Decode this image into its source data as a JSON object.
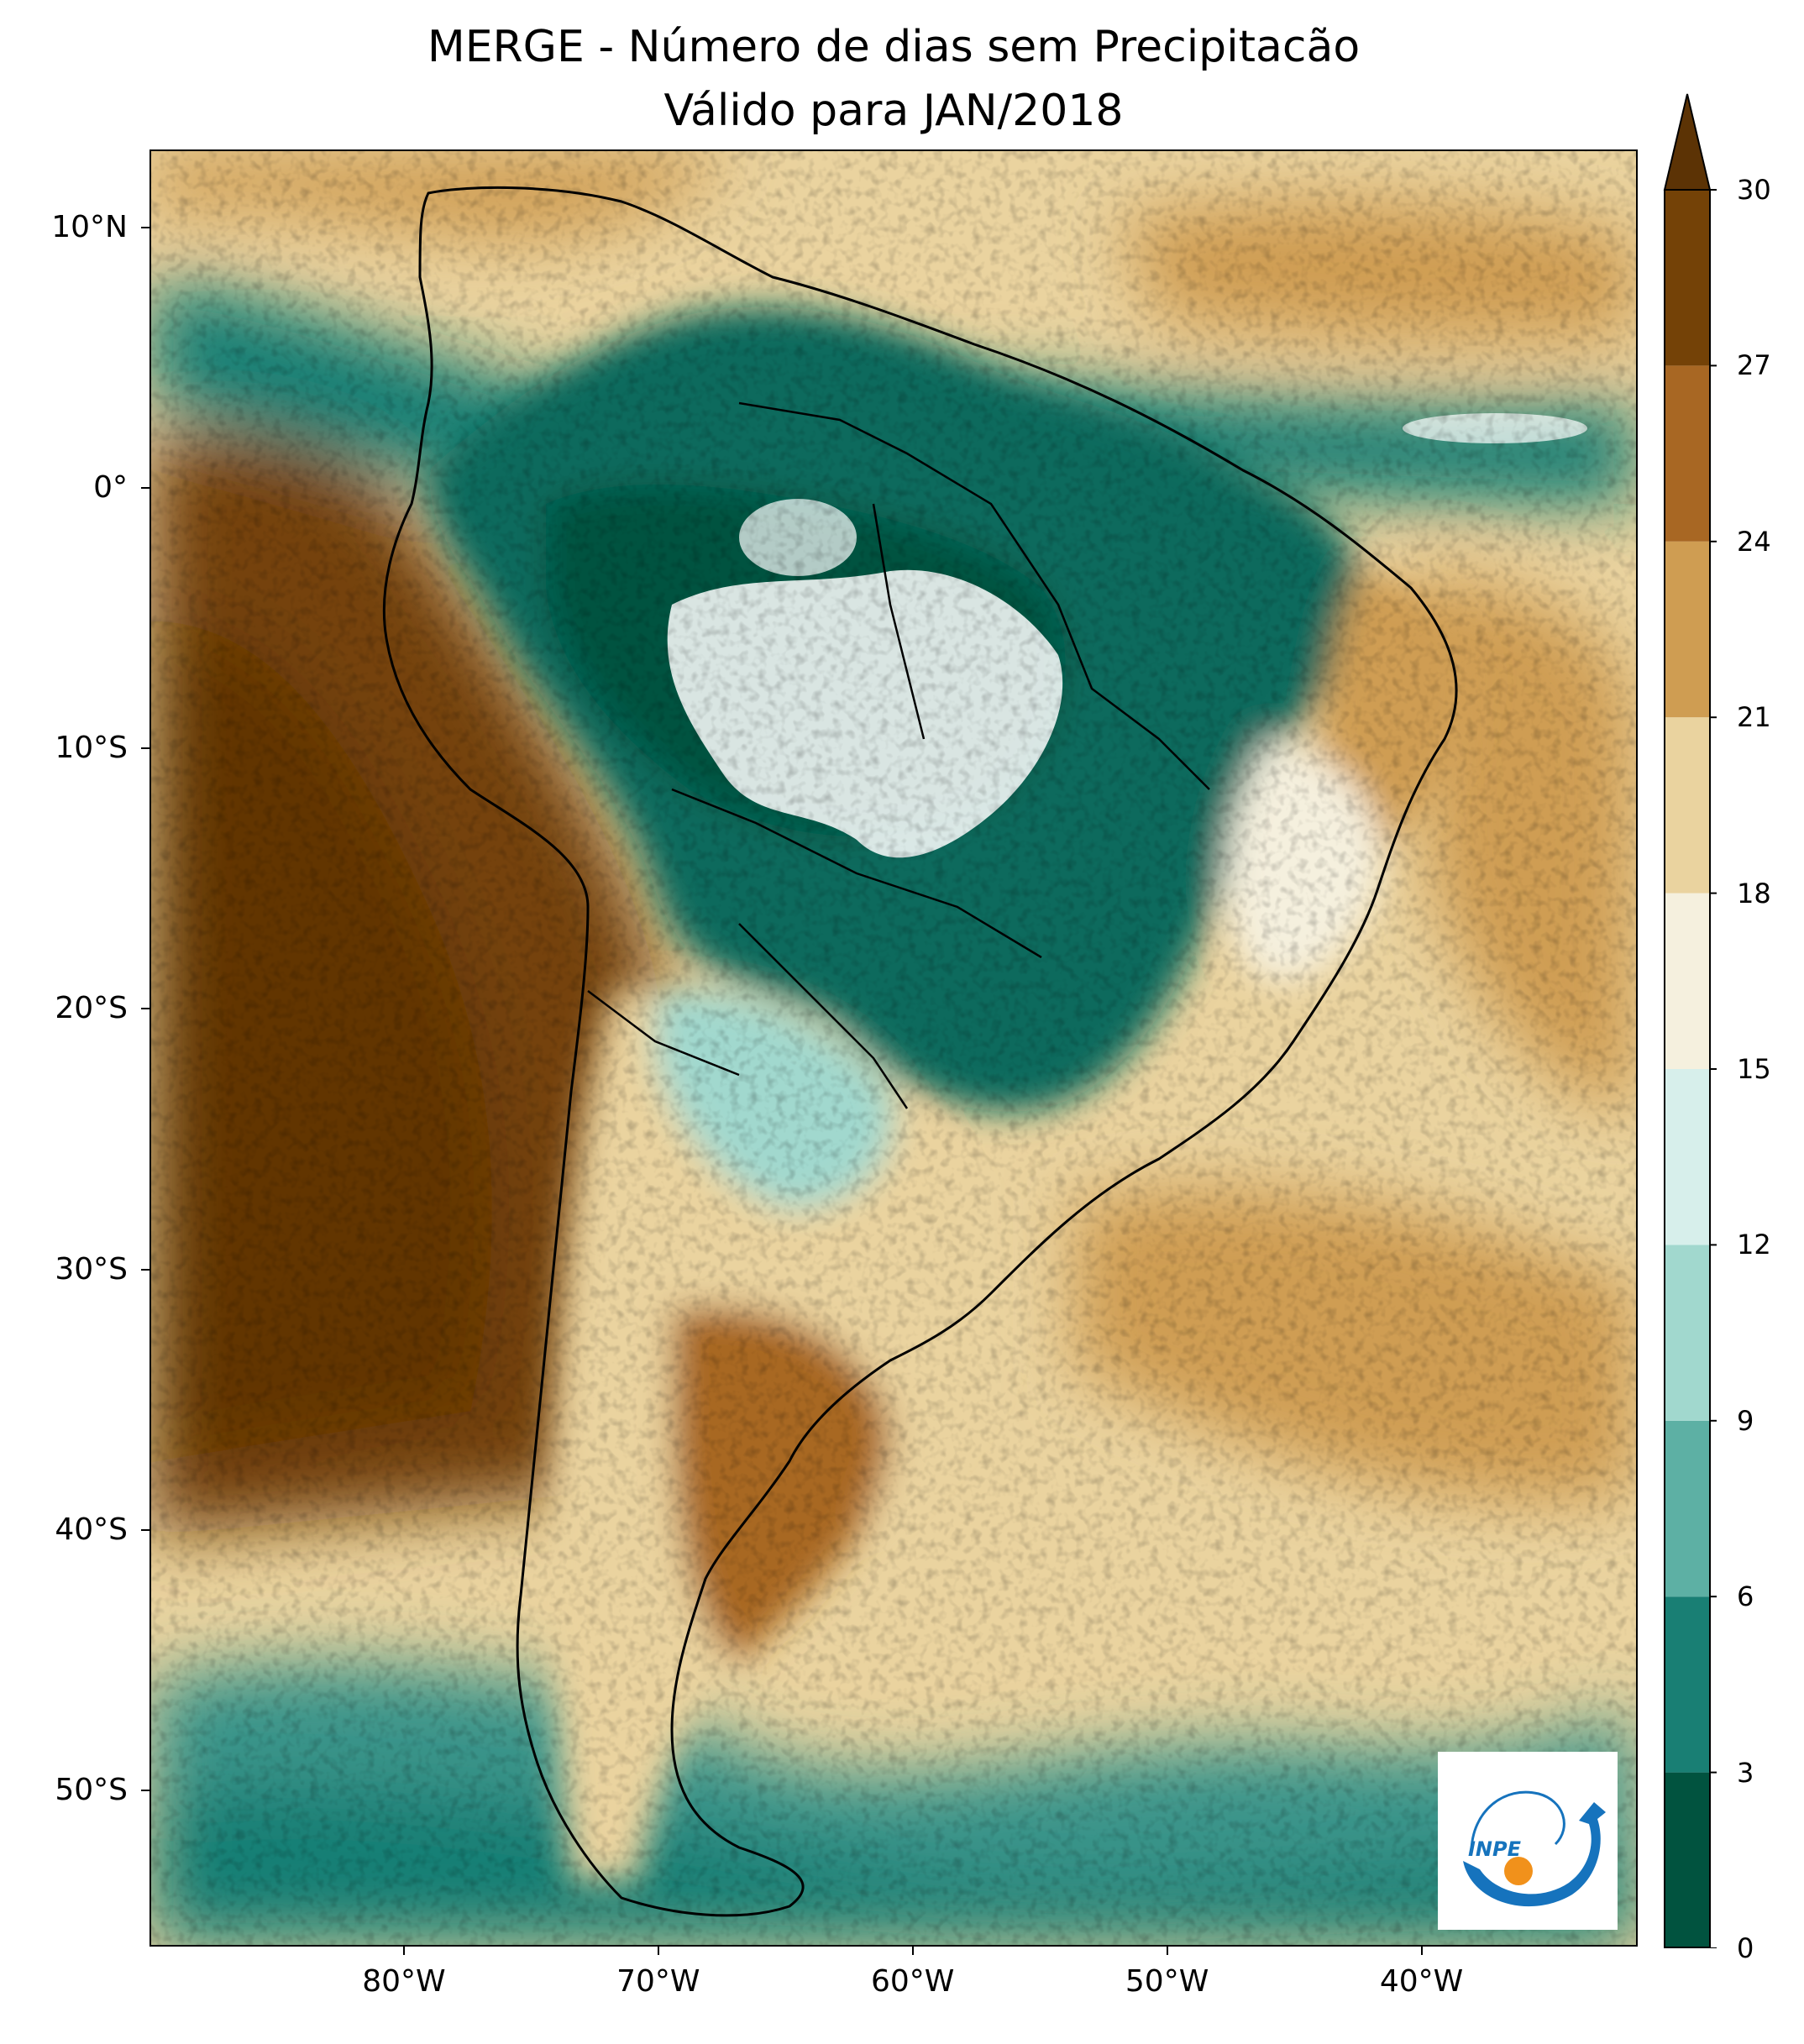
{
  "title": {
    "line1": "MERGE - Número de dias sem Precipitacão",
    "line2": "Válido para JAN/2018"
  },
  "map": {
    "projection": "PlateCarree",
    "lon_range": [
      -90.0,
      -31.5
    ],
    "lat_range": [
      -56.0,
      13.0
    ],
    "x_ticks": [
      {
        "lon": -80,
        "label": "80°W"
      },
      {
        "lon": -70,
        "label": "70°W"
      },
      {
        "lon": -60,
        "label": "60°W"
      },
      {
        "lon": -50,
        "label": "50°W"
      },
      {
        "lon": -40,
        "label": "40°W"
      }
    ],
    "y_ticks": [
      {
        "lat": 10,
        "label": "10°N"
      },
      {
        "lat": 0,
        "label": "0°"
      },
      {
        "lat": -10,
        "label": "10°S"
      },
      {
        "lat": -20,
        "label": "20°S"
      },
      {
        "lat": -30,
        "label": "30°S"
      },
      {
        "lat": -40,
        "label": "40°S"
      },
      {
        "lat": -50,
        "label": "50°S"
      }
    ],
    "variable": "number of days without precipitation",
    "colormap": "BrBG_r",
    "colorbar": {
      "levels": [
        0,
        3,
        6,
        9,
        12,
        15,
        18,
        21,
        24,
        27,
        30
      ],
      "labels": [
        "0",
        "3",
        "6",
        "9",
        "12",
        "15",
        "18",
        "21",
        "24",
        "27",
        "30"
      ],
      "colors": [
        "#01533f",
        "#197f74",
        "#5db0a4",
        "#a1d8ce",
        "#d7efeb",
        "#f5f0de",
        "#ead39f",
        "#cf9d52",
        "#a86723",
        "#744207"
      ],
      "extend": "max",
      "extend_color": "#5c3305"
    },
    "colors": {
      "ocean_dry": "#70420c",
      "ocean_wet": "#3a948a",
      "land_wet": "#106a5d",
      "no_data": "#ffffff",
      "border": "#000000"
    }
  },
  "logo": {
    "text": "INPE",
    "blue": "#1673bd",
    "orange": "#f1911b"
  }
}
